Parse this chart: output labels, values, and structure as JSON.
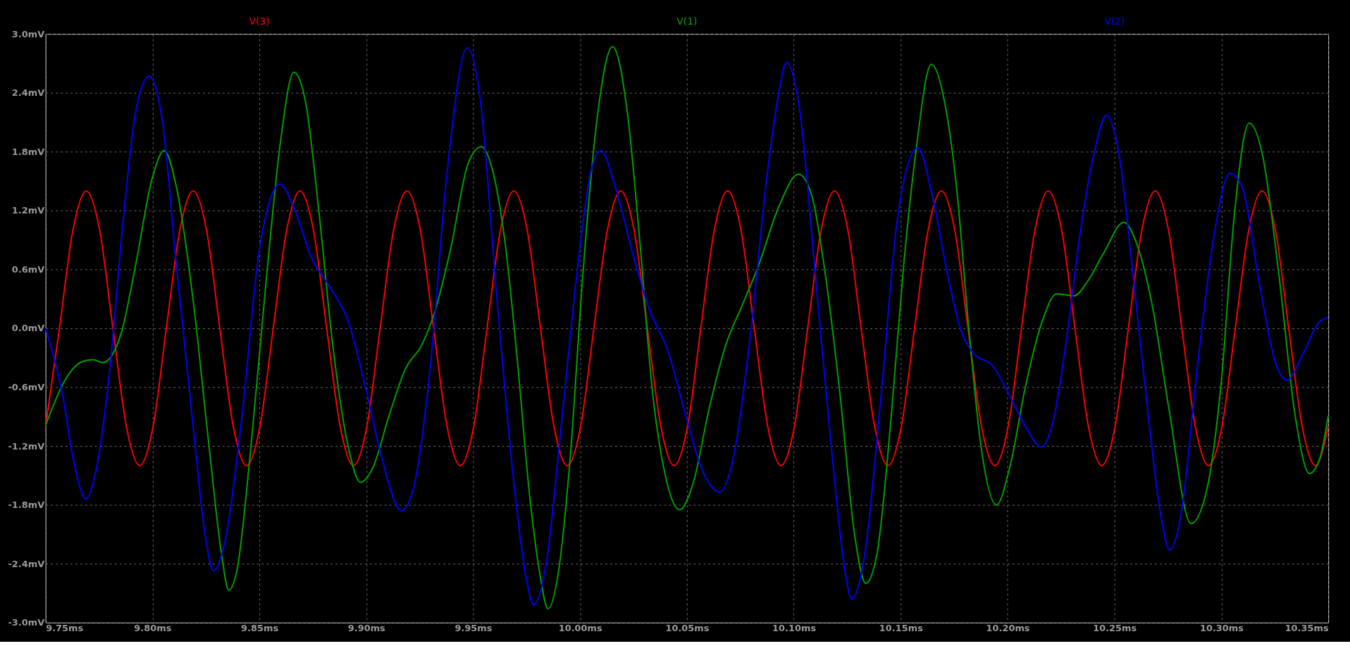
{
  "chart_data": {
    "type": "line",
    "xlim": [
      9.75,
      10.35
    ],
    "ylim": [
      -3.0,
      3.0
    ],
    "xticks": [
      {
        "value": 9.75,
        "label": "9.75ms"
      },
      {
        "value": 9.8,
        "label": "9.80ms"
      },
      {
        "value": 9.85,
        "label": "9.85ms"
      },
      {
        "value": 9.9,
        "label": "9.90ms"
      },
      {
        "value": 9.95,
        "label": "9.95ms"
      },
      {
        "value": 10.0,
        "label": "10.00ms"
      },
      {
        "value": 10.05,
        "label": "10.05ms"
      },
      {
        "value": 10.1,
        "label": "10.10ms"
      },
      {
        "value": 10.15,
        "label": "10.15ms"
      },
      {
        "value": 10.2,
        "label": "10.20ms"
      },
      {
        "value": 10.25,
        "label": "10.25ms"
      },
      {
        "value": 10.3,
        "label": "10.30ms"
      },
      {
        "value": 10.35,
        "label": "10.35ms"
      }
    ],
    "yticks": [
      {
        "value": -3.0,
        "label": "-3.0mV"
      },
      {
        "value": -2.4,
        "label": "-2.4mV"
      },
      {
        "value": -1.8,
        "label": "-1.8mV"
      },
      {
        "value": -1.2,
        "label": "-1.2mV"
      },
      {
        "value": -0.6,
        "label": "-0.6mV"
      },
      {
        "value": 0.0,
        "label": "0.0mV"
      },
      {
        "value": 0.6,
        "label": "0.6mV"
      },
      {
        "value": 1.2,
        "label": "1.2mV"
      },
      {
        "value": 1.8,
        "label": "1.8mV"
      },
      {
        "value": 2.4,
        "label": "2.4mV"
      },
      {
        "value": 3.0,
        "label": "3.0mV"
      }
    ],
    "grid": true,
    "legend": "top",
    "line_style": "solid",
    "marker": "none",
    "series": [
      {
        "name": "V(3)",
        "color": "#ff0000",
        "x": [
          9.75,
          9.7565,
          9.7628,
          9.769,
          9.7753,
          9.7815,
          9.7878,
          9.794,
          9.8003,
          9.8065,
          9.8128,
          9.819,
          9.8253,
          9.8315,
          9.8378,
          9.844,
          9.8503,
          9.8565,
          9.8628,
          9.869,
          9.8753,
          9.8815,
          9.8878,
          9.894,
          9.9003,
          9.9065,
          9.9128,
          9.919,
          9.9253,
          9.9315,
          9.9378,
          9.944,
          9.9503,
          9.9565,
          9.9628,
          9.969,
          9.9753,
          9.9815,
          9.9878,
          9.994,
          10.0003,
          10.0065,
          10.0128,
          10.019,
          10.0253,
          10.0315,
          10.0378,
          10.044,
          10.0503,
          10.0565,
          10.0628,
          10.069,
          10.0753,
          10.0815,
          10.0878,
          10.094,
          10.1003,
          10.1065,
          10.1128,
          10.119,
          10.1253,
          10.1315,
          10.1378,
          10.144,
          10.1503,
          10.1565,
          10.1628,
          10.169,
          10.1753,
          10.1815,
          10.1878,
          10.194,
          10.2003,
          10.2065,
          10.2128,
          10.219,
          10.2253,
          10.2315,
          10.2378,
          10.244,
          10.2503,
          10.2565,
          10.2628,
          10.269,
          10.2753,
          10.2815,
          10.2878,
          10.294,
          10.3003,
          10.3065,
          10.3128,
          10.319,
          10.3253,
          10.3315,
          10.3378,
          10.344,
          10.35
        ],
        "values": [
          -1.0,
          0.0,
          1.0,
          1.4,
          1.0,
          0.0,
          -1.0,
          -1.4,
          -1.0,
          0.0,
          1.0,
          1.4,
          1.0,
          0.0,
          -1.0,
          -1.4,
          -1.0,
          0.0,
          1.0,
          1.4,
          1.0,
          0.0,
          -1.0,
          -1.4,
          -1.0,
          0.0,
          1.0,
          1.4,
          1.0,
          0.0,
          -1.0,
          -1.4,
          -1.0,
          0.0,
          1.0,
          1.4,
          1.0,
          0.0,
          -1.0,
          -1.4,
          -1.0,
          0.0,
          1.0,
          1.4,
          1.0,
          0.0,
          -1.0,
          -1.4,
          -1.0,
          0.0,
          1.0,
          1.4,
          1.0,
          0.0,
          -1.0,
          -1.4,
          -1.0,
          0.0,
          1.0,
          1.4,
          1.0,
          0.0,
          -1.0,
          -1.4,
          -1.0,
          0.0,
          1.0,
          1.4,
          1.0,
          0.0,
          -1.0,
          -1.4,
          -1.0,
          0.0,
          1.0,
          1.4,
          1.0,
          0.0,
          -1.0,
          -1.4,
          -1.0,
          0.0,
          1.0,
          1.4,
          1.0,
          0.0,
          -1.0,
          -1.4,
          -1.0,
          0.0,
          1.0,
          1.4,
          1.0,
          0.0,
          -1.0,
          -1.4,
          -1.0
        ]
      },
      {
        "name": "V(1)",
        "color": "#00a000",
        "x": [
          9.75,
          9.7596,
          9.7672,
          9.772,
          9.7768,
          9.7806,
          9.7854,
          9.7921,
          9.7998,
          9.8055,
          9.8112,
          9.8189,
          9.8265,
          9.8323,
          9.8357,
          9.8399,
          9.8457,
          9.8533,
          9.86,
          9.8661,
          9.8715,
          9.8782,
          9.8839,
          9.8916,
          9.8973,
          9.9031,
          9.9107,
          9.9184,
          9.926,
          9.9318,
          9.9394,
          9.9477,
          9.9538,
          9.9592,
          9.9649,
          9.9707,
          9.9764,
          9.9812,
          9.985,
          9.9898,
          9.9955,
          10.0012,
          10.0079,
          10.0152,
          10.0223,
          10.028,
          10.0337,
          10.0395,
          10.0466,
          10.0529,
          10.0605,
          10.0682,
          10.0758,
          10.0835,
          10.093,
          10.1022,
          10.1083,
          10.115,
          10.1217,
          10.1284,
          10.1337,
          10.1389,
          10.1456,
          10.1513,
          10.1571,
          10.1643,
          10.1704,
          10.1761,
          10.1819,
          10.1876,
          10.1948,
          10.201,
          10.2086,
          10.2162,
          10.2229,
          10.2311,
          10.2372,
          10.2448,
          10.2544,
          10.2601,
          10.2677,
          10.2754,
          10.2858,
          10.2926,
          10.3002,
          10.3059,
          10.313,
          10.3193,
          10.3269,
          10.3345,
          10.3412,
          10.346,
          10.35
        ],
        "values": [
          -0.99,
          -0.51,
          -0.34,
          -0.32,
          -0.35,
          -0.29,
          -0.05,
          0.64,
          1.52,
          1.81,
          1.44,
          0.31,
          -1.21,
          -2.3,
          -2.67,
          -2.42,
          -1.29,
          0.51,
          1.92,
          2.61,
          2.32,
          1.12,
          -0.09,
          -1.21,
          -1.57,
          -1.42,
          -0.89,
          -0.41,
          -0.17,
          0.15,
          0.8,
          1.68,
          1.85,
          1.6,
          0.88,
          -0.33,
          -1.7,
          -2.5,
          -2.86,
          -2.5,
          -1.29,
          0.51,
          2.12,
          2.87,
          2.17,
          0.88,
          -0.61,
          -1.46,
          -1.85,
          -1.58,
          -0.81,
          -0.17,
          0.23,
          0.64,
          1.24,
          1.57,
          1.36,
          0.51,
          -0.69,
          -2.1,
          -2.6,
          -2.3,
          -0.89,
          0.62,
          1.8,
          2.69,
          2.32,
          1.44,
          -0.01,
          -1.21,
          -1.8,
          -1.42,
          -0.57,
          0.07,
          0.35,
          0.33,
          0.47,
          0.76,
          1.08,
          0.88,
          0.23,
          -0.81,
          -1.99,
          -1.7,
          -0.49,
          1.12,
          2.09,
          1.76,
          0.55,
          -0.89,
          -1.48,
          -1.33,
          -0.89
        ]
      },
      {
        "name": "V(2)",
        "color": "#0000ff",
        "x": [
          9.75,
          9.7577,
          9.7634,
          9.7688,
          9.7739,
          9.7797,
          9.7864,
          9.7921,
          9.7984,
          9.8046,
          9.8112,
          9.8189,
          9.8246,
          9.8285,
          9.8342,
          9.8419,
          9.8495,
          9.8552,
          9.8596,
          9.8667,
          9.8744,
          9.8839,
          9.8916,
          9.8993,
          9.9069,
          9.9165,
          9.9222,
          9.9299,
          9.9375,
          9.9473,
          9.9534,
          9.9611,
          9.9687,
          9.9745,
          9.9783,
          9.984,
          9.9917,
          9.9994,
          10.0051,
          10.0097,
          10.0165,
          10.0242,
          10.0318,
          10.0414,
          10.049,
          10.0567,
          10.0653,
          10.072,
          10.0796,
          10.0873,
          10.093,
          10.0965,
          10.1026,
          10.1102,
          10.1179,
          10.1236,
          10.1271,
          10.1332,
          10.1408,
          10.1485,
          10.158,
          10.1647,
          10.1723,
          10.178,
          10.1838,
          10.1933,
          10.201,
          10.2086,
          10.2158,
          10.2219,
          10.2277,
          10.2334,
          10.241,
          10.2462,
          10.2525,
          10.2582,
          10.2658,
          10.2716,
          10.2758,
          10.2811,
          10.2887,
          10.2964,
          10.304,
          10.3097,
          10.3174,
          10.325,
          10.3307,
          10.3384,
          10.346,
          10.35
        ],
        "values": [
          0.0,
          -0.65,
          -1.38,
          -1.74,
          -1.42,
          -0.49,
          1.12,
          2.2,
          2.57,
          2.12,
          0.64,
          -0.97,
          -2.1,
          -2.47,
          -2.14,
          -0.89,
          0.72,
          1.32,
          1.47,
          1.2,
          0.72,
          0.39,
          0.07,
          -0.57,
          -1.29,
          -1.86,
          -1.62,
          -0.41,
          1.52,
          2.86,
          2.32,
          0.31,
          -1.5,
          -2.5,
          -2.82,
          -2.42,
          -0.89,
          0.72,
          1.6,
          1.81,
          1.44,
          0.8,
          0.23,
          -0.25,
          -0.85,
          -1.42,
          -1.67,
          -1.29,
          -0.09,
          1.52,
          2.4,
          2.71,
          2.25,
          0.51,
          -1.29,
          -2.42,
          -2.76,
          -2.3,
          -0.69,
          1.12,
          1.84,
          1.36,
          0.51,
          -0.01,
          -0.25,
          -0.39,
          -0.69,
          -1.01,
          -1.21,
          -0.89,
          -0.09,
          0.88,
          1.84,
          2.17,
          1.72,
          0.64,
          -0.89,
          -1.9,
          -2.26,
          -1.9,
          -0.41,
          0.92,
          1.58,
          1.44,
          0.51,
          -0.33,
          -0.53,
          -0.25,
          0.07,
          0.11
        ]
      }
    ]
  }
}
